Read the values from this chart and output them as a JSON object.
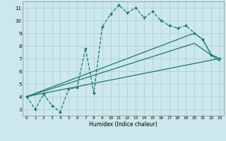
{
  "xlabel": "Humidex (Indice chaleur)",
  "bg_color": "#cce8ec",
  "grid_color": "#aacccc",
  "line_color": "#1a7a6e",
  "xlim": [
    -0.5,
    23.5
  ],
  "ylim": [
    2.5,
    11.5
  ],
  "yticks": [
    3,
    4,
    5,
    6,
    7,
    8,
    9,
    10,
    11
  ],
  "xticks": [
    0,
    1,
    2,
    3,
    4,
    5,
    6,
    7,
    8,
    9,
    10,
    11,
    12,
    13,
    14,
    15,
    16,
    17,
    18,
    19,
    20,
    21,
    22,
    23
  ],
  "line1_x": [
    0,
    1,
    2,
    3,
    4,
    5,
    6,
    7,
    8,
    9,
    10,
    11,
    12,
    13,
    14,
    15,
    16,
    17,
    18,
    19,
    20,
    21,
    22,
    23
  ],
  "line1_y": [
    4.0,
    3.0,
    4.2,
    3.3,
    2.8,
    4.6,
    4.7,
    7.8,
    4.3,
    9.5,
    10.5,
    11.2,
    10.6,
    11.0,
    10.2,
    10.7,
    10.0,
    9.6,
    9.4,
    9.6,
    9.0,
    8.5,
    7.3,
    7.0
  ],
  "line2_x": [
    0,
    23
  ],
  "line2_y": [
    4.0,
    7.0
  ],
  "line3_x": [
    0,
    20,
    21,
    22,
    23
  ],
  "line3_y": [
    4.0,
    9.0,
    8.5,
    7.3,
    7.0
  ],
  "line4_x": [
    0,
    20,
    23
  ],
  "line4_y": [
    4.0,
    8.2,
    6.8
  ]
}
